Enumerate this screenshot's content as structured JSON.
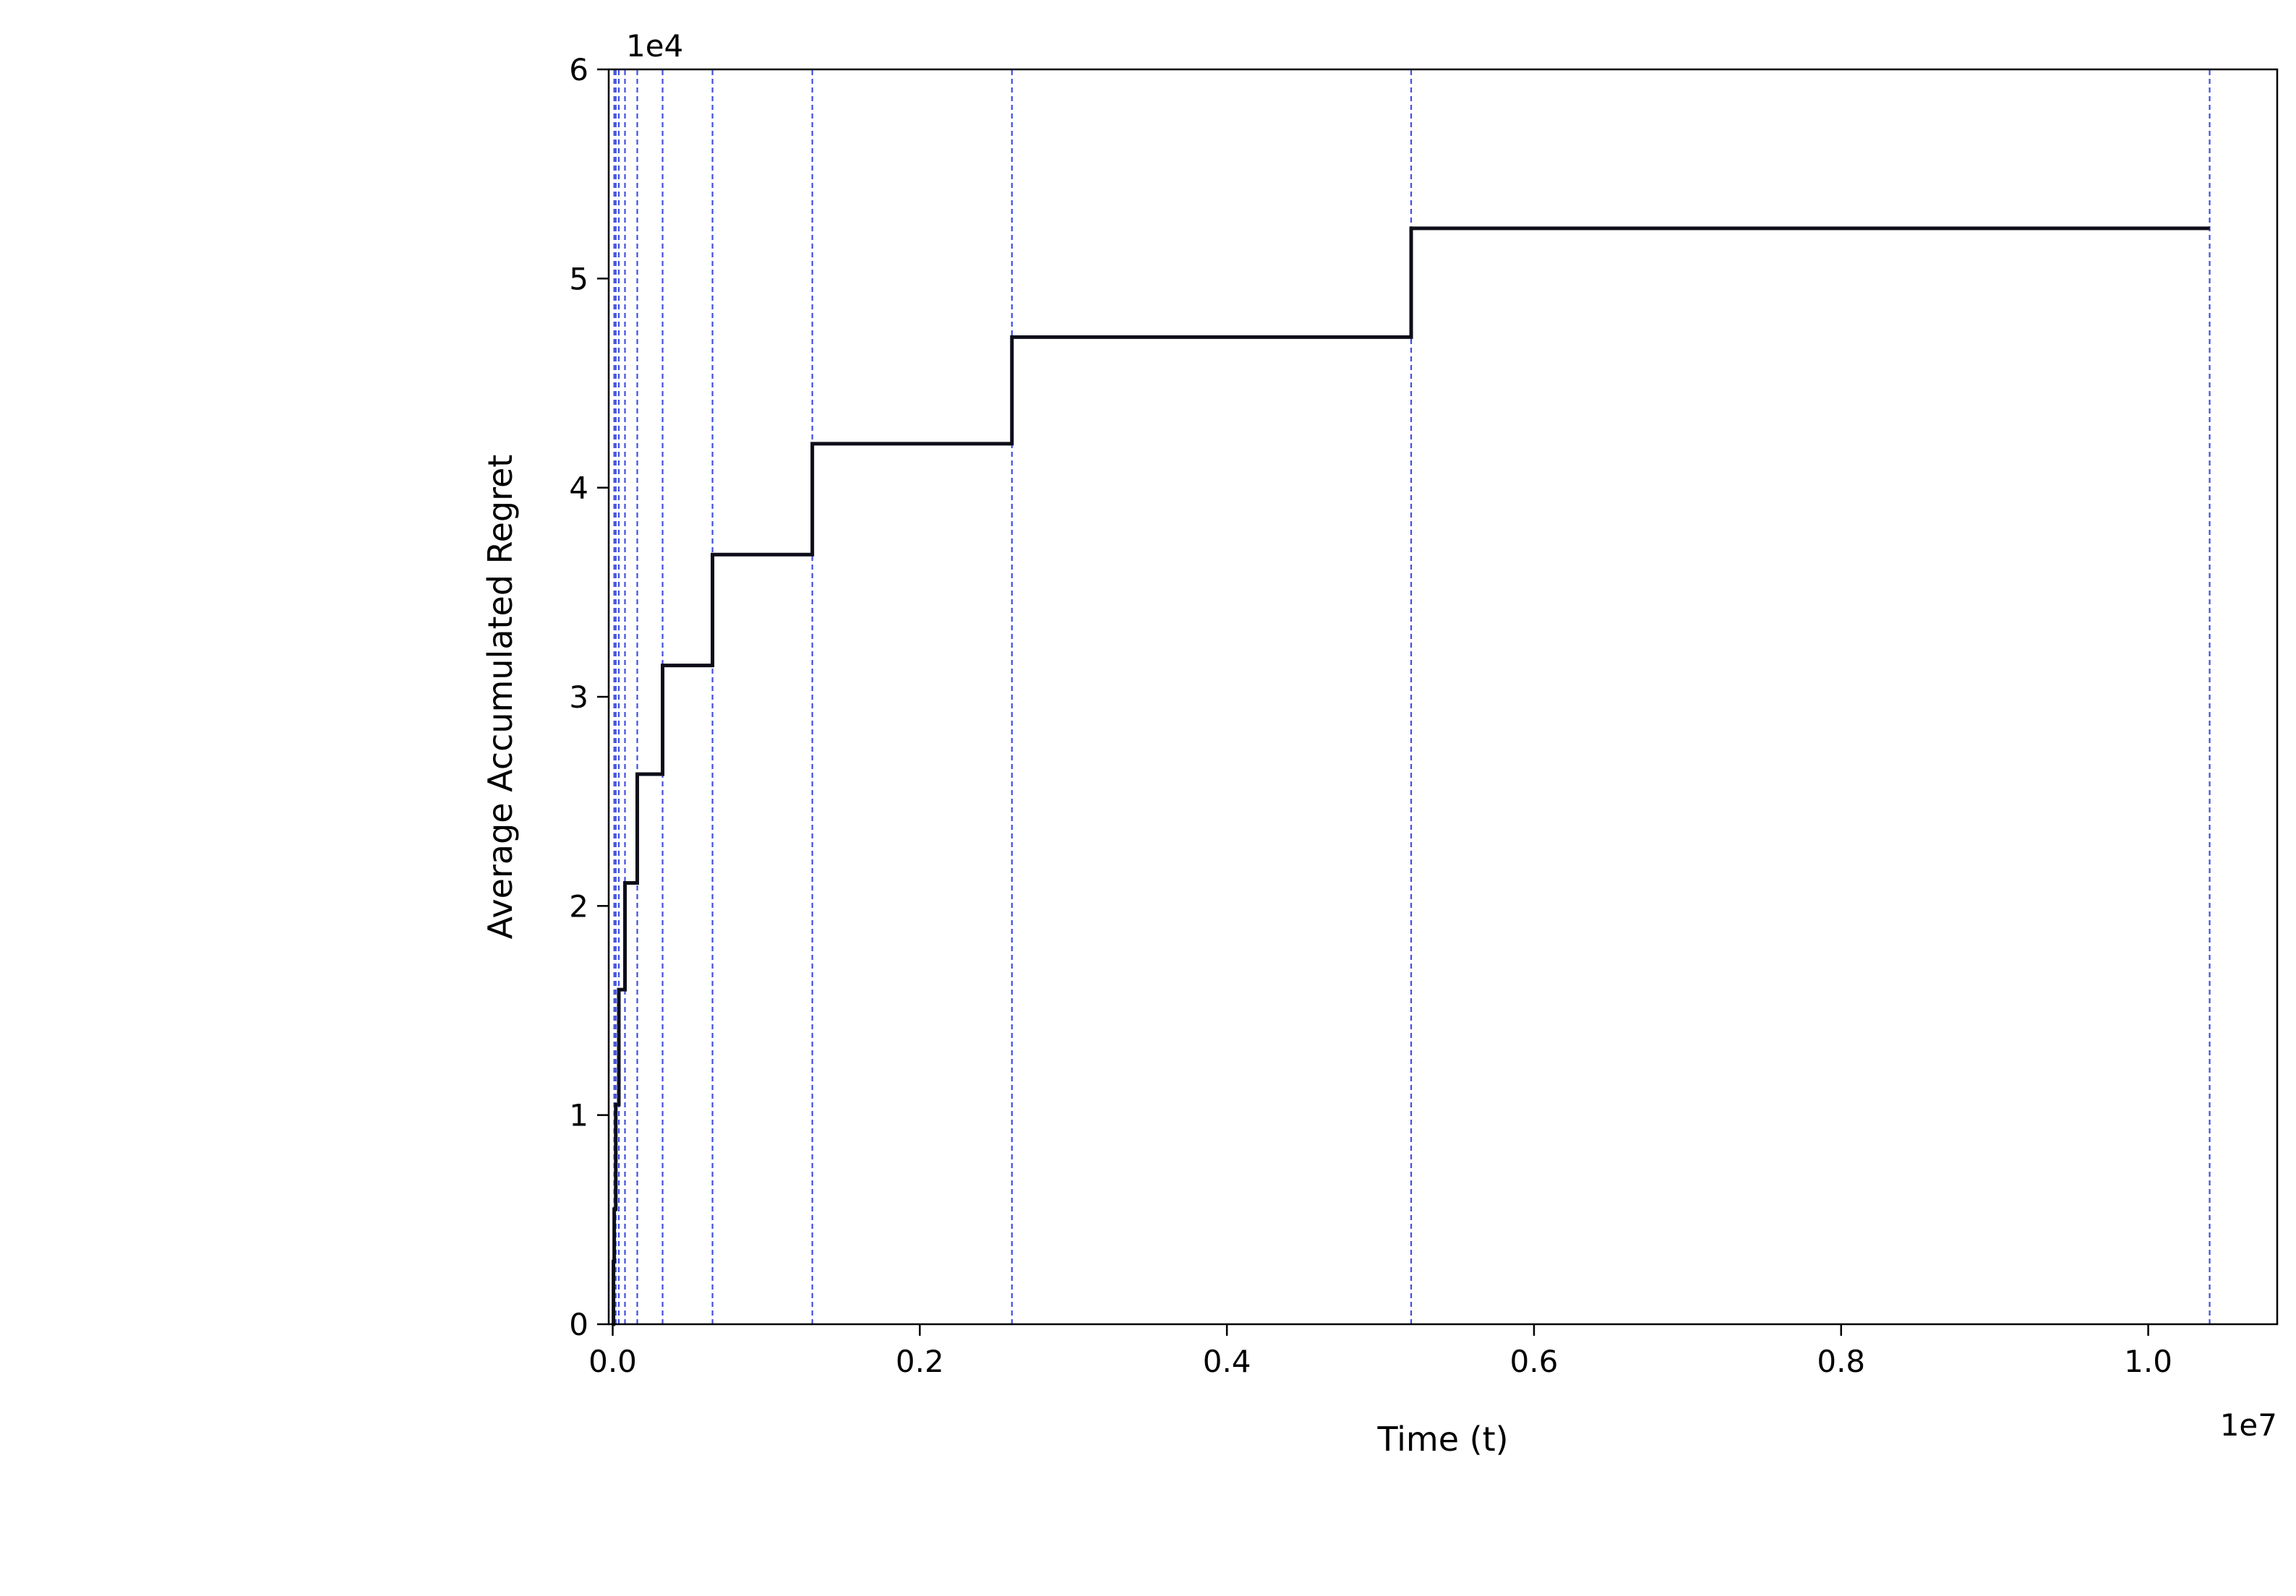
{
  "chart_data": {
    "type": "line",
    "subtype": "step",
    "title": "",
    "xlabel": "Time (t)",
    "ylabel": "Average Accumulated Regret",
    "x_offset_label": "1e7",
    "y_offset_label": "1e4",
    "x_scale_factor": 10000000,
    "y_scale_factor": 10000,
    "xlim": [
      -0.0026,
      1.084
    ],
    "ylim": [
      0,
      6
    ],
    "xticks": [
      0.0,
      0.2,
      0.4,
      0.6,
      0.8,
      1.0
    ],
    "xtick_labels": [
      "0.0",
      "0.2",
      "0.4",
      "0.6",
      "0.8",
      "1.0"
    ],
    "yticks": [
      0,
      1,
      2,
      3,
      4,
      5,
      6
    ],
    "ytick_labels": [
      "0",
      "1",
      "2",
      "3",
      "4",
      "5",
      "6"
    ],
    "grid": false,
    "legend": null,
    "series": [
      {
        "name": "average-accumulated-regret",
        "color": "#0e0e1a",
        "line_width": 5,
        "plateaus": [
          [
            0.0,
            0.0005,
            0.0
          ],
          [
            0.0005,
            0.001,
            0.3
          ],
          [
            0.001,
            0.002,
            0.55
          ],
          [
            0.002,
            0.004,
            1.05
          ],
          [
            0.004,
            0.008,
            1.6
          ],
          [
            0.008,
            0.016,
            2.11
          ],
          [
            0.016,
            0.0325,
            2.63
          ],
          [
            0.0325,
            0.065,
            3.15
          ],
          [
            0.065,
            0.13,
            3.68
          ],
          [
            0.13,
            0.26,
            4.21
          ],
          [
            0.26,
            0.52,
            4.72
          ],
          [
            0.52,
            1.04,
            5.24
          ]
        ]
      }
    ],
    "epoch_lines": {
      "color": "#4050e0",
      "style": "dashed",
      "line_width": 2.2,
      "x": [
        0.001,
        0.002,
        0.004,
        0.008,
        0.016,
        0.0325,
        0.065,
        0.13,
        0.26,
        0.52,
        1.04
      ]
    },
    "colors": {
      "spine": "#000000",
      "background": "#ffffff"
    }
  }
}
